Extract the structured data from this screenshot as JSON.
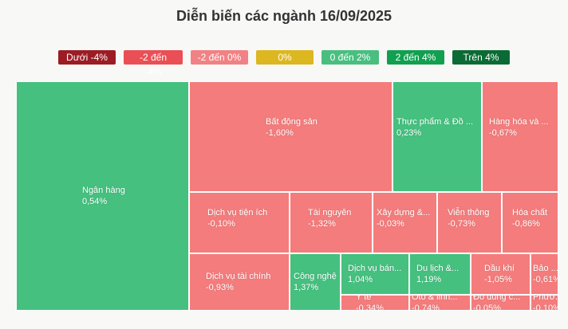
{
  "title": "Diễn biến các ngành 16/09/2025",
  "legend": [
    {
      "label": "Dưới -4%",
      "color": "#9b1c24"
    },
    {
      "label": "-2 đến -4%",
      "color": "#ea4f55"
    },
    {
      "label": "-2 đến 0%",
      "color": "#f18184"
    },
    {
      "label": "0%",
      "color": "#dcb71f"
    },
    {
      "label": "0 đến 2%",
      "color": "#48bf7f"
    },
    {
      "label": "2 đến 4%",
      "color": "#11a04f"
    },
    {
      "label": "Trên 4%",
      "color": "#0b6b34"
    }
  ],
  "colors": {
    "negative": "#f47c7c",
    "positive": "#45c07f"
  },
  "chart_data": {
    "type": "treemap",
    "items": [
      {
        "name": "Ngân hàng",
        "value": "0,54%"
      },
      {
        "name": "Bất động sản",
        "value": "-1,60%"
      },
      {
        "name": "Thực phẩm & Đồ ...",
        "value": "0,23%"
      },
      {
        "name": "Hàng hóa và ...",
        "value": "-0,67%"
      },
      {
        "name": "Dịch vụ tiện ích",
        "value": "-0,10%"
      },
      {
        "name": "Tài nguyên",
        "value": "-1,32%"
      },
      {
        "name": "Xây dựng &...",
        "value": "-0,03%"
      },
      {
        "name": "Viễn thông",
        "value": "-0,73%"
      },
      {
        "name": "Hóa chất",
        "value": "-0,86%"
      },
      {
        "name": "Dịch vụ tài chính",
        "value": "-0,93%"
      },
      {
        "name": "Công nghệ",
        "value": "1,37%"
      },
      {
        "name": "Dịch vụ bán...",
        "value": "1,04%"
      },
      {
        "name": "Du lịch &...",
        "value": "1,19%"
      },
      {
        "name": "Dầu khí",
        "value": "-1,05%"
      },
      {
        "name": "Bảo ...",
        "value": "-0,61%"
      },
      {
        "name": "Y tế",
        "value": "-0,34%"
      },
      {
        "name": "Ôtô & linh...",
        "value": "-0,74%"
      },
      {
        "name": "Đồ dùng c...",
        "value": "-0,05%"
      },
      {
        "name": "Phươ...",
        "value": "-0,10%"
      }
    ]
  }
}
